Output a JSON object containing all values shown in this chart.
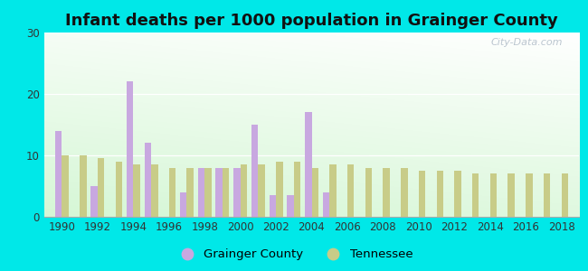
{
  "title": "Infant deaths per 1000 population in Grainger County",
  "years": [
    1990,
    1991,
    1992,
    1993,
    1994,
    1995,
    1996,
    1997,
    1998,
    1999,
    2000,
    2001,
    2002,
    2003,
    2004,
    2005,
    2006,
    2007,
    2008,
    2009,
    2010,
    2011,
    2012,
    2013,
    2014,
    2015,
    2016,
    2017,
    2018
  ],
  "grainger": [
    14,
    0,
    5,
    0,
    22,
    12,
    0,
    4,
    8,
    8,
    8,
    15,
    3.5,
    3.5,
    17,
    4,
    0,
    0,
    0,
    0,
    0,
    0,
    0,
    0,
    0,
    0,
    0,
    0,
    0
  ],
  "tennessee": [
    10,
    10,
    9.5,
    9,
    8.5,
    8.5,
    8,
    8,
    8,
    8,
    8.5,
    8.5,
    9,
    9,
    8,
    8.5,
    8.5,
    8,
    8,
    8,
    7.5,
    7.5,
    7.5,
    7,
    7,
    7,
    7,
    7,
    7
  ],
  "grainger_color": "#c8a8e0",
  "tennessee_color": "#c8cc88",
  "bg_outer": "#00e8e8",
  "bg_plot_topleft": "#d4edd4",
  "bg_plot_topright": "#f0f8f0",
  "bg_plot_bottom": "#c8e8c8",
  "ylim": [
    0,
    30
  ],
  "yticks": [
    0,
    10,
    20,
    30
  ],
  "title_fontsize": 13,
  "bar_width": 0.38,
  "legend_grainger": "Grainger County",
  "legend_tennessee": "Tennessee",
  "watermark": "City-Data.com"
}
